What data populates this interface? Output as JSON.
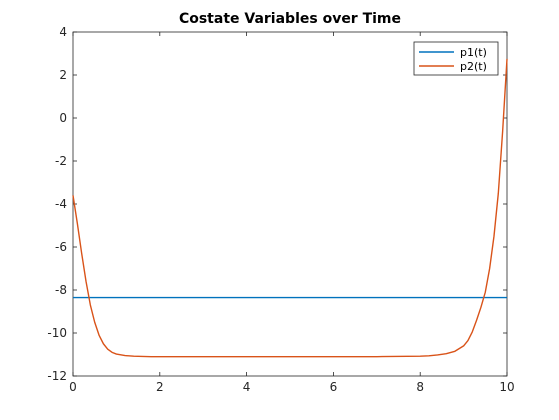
{
  "chart_data": {
    "type": "line",
    "title": "Costate Variables over Time",
    "xlabel": "",
    "ylabel": "",
    "xlim": [
      0,
      10
    ],
    "ylim": [
      -12,
      4
    ],
    "xticks": [
      "0",
      "2",
      "4",
      "6",
      "8",
      "10"
    ],
    "yticks": [
      "4",
      "2",
      "0",
      "-2",
      "-4",
      "-6",
      "-8",
      "-10",
      "-12"
    ],
    "grid": false,
    "legend_position": "top-right",
    "series": [
      {
        "name": "p1(t)",
        "color": "#0072BD",
        "x": [
          0,
          10
        ],
        "y": [
          -8.35,
          -8.35
        ]
      },
      {
        "name": "p2(t)",
        "color": "#D95319",
        "x": [
          0,
          0.1,
          0.2,
          0.3,
          0.4,
          0.5,
          0.6,
          0.7,
          0.8,
          0.9,
          1.0,
          1.2,
          1.4,
          1.6,
          1.8,
          2.0,
          3.0,
          4.0,
          5.0,
          6.0,
          7.0,
          8.0,
          8.2,
          8.4,
          8.6,
          8.8,
          9.0,
          9.1,
          9.2,
          9.3,
          9.4,
          9.5,
          9.6,
          9.7,
          9.8,
          9.9,
          10.0
        ],
        "y": [
          -3.6,
          -4.9,
          -6.3,
          -7.6,
          -8.7,
          -9.5,
          -10.1,
          -10.5,
          -10.75,
          -10.9,
          -10.98,
          -11.05,
          -11.08,
          -11.09,
          -11.1,
          -11.1,
          -11.1,
          -11.1,
          -11.1,
          -11.1,
          -11.1,
          -11.08,
          -11.06,
          -11.02,
          -10.96,
          -10.85,
          -10.6,
          -10.35,
          -9.95,
          -9.4,
          -8.8,
          -8.1,
          -7.0,
          -5.5,
          -3.5,
          -0.6,
          2.75
        ]
      }
    ]
  }
}
